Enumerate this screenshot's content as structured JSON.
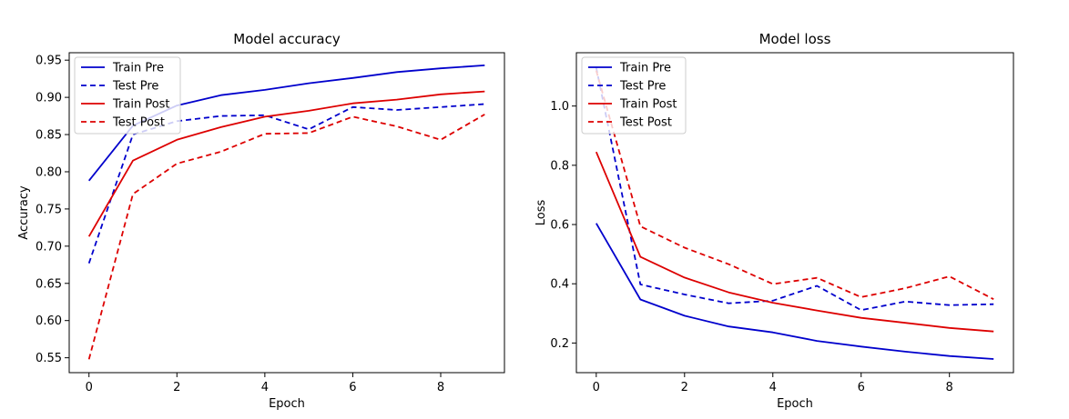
{
  "chart_data": [
    {
      "type": "line",
      "title": "Model accuracy",
      "xlabel": "Epoch",
      "ylabel": "Accuracy",
      "xlim": [
        -0.45,
        9.45
      ],
      "ylim": [
        0.53,
        0.96
      ],
      "xticks": [
        0,
        2,
        4,
        6,
        8
      ],
      "yticks": [
        0.55,
        0.6,
        0.65,
        0.7,
        0.75,
        0.8,
        0.85,
        0.9,
        0.95
      ],
      "ytick_labels": [
        "0.55",
        "0.60",
        "0.65",
        "0.70",
        "0.75",
        "0.80",
        "0.85",
        "0.90",
        "0.95"
      ],
      "legend_position": "top-left",
      "x": [
        0,
        1,
        2,
        3,
        4,
        5,
        6,
        7,
        8,
        9
      ],
      "series": [
        {
          "name": "Train Pre",
          "color": "#0000cc",
          "style": "solid",
          "values": [
            0.788,
            0.862,
            0.889,
            0.903,
            0.91,
            0.919,
            0.926,
            0.934,
            0.939,
            0.943
          ]
        },
        {
          "name": "Test Pre",
          "color": "#0000cc",
          "style": "dashed",
          "values": [
            0.677,
            0.85,
            0.868,
            0.875,
            0.876,
            0.857,
            0.887,
            0.883,
            0.887,
            0.891
          ]
        },
        {
          "name": "Train Post",
          "color": "#dd0000",
          "style": "solid",
          "values": [
            0.713,
            0.815,
            0.843,
            0.86,
            0.874,
            0.882,
            0.892,
            0.897,
            0.904,
            0.908
          ]
        },
        {
          "name": "Test Post",
          "color": "#dd0000",
          "style": "dashed",
          "values": [
            0.548,
            0.77,
            0.811,
            0.827,
            0.851,
            0.852,
            0.874,
            0.861,
            0.843,
            0.877
          ]
        }
      ]
    },
    {
      "type": "line",
      "title": "Model loss",
      "xlabel": "Epoch",
      "ylabel": "Loss",
      "xlim": [
        -0.45,
        9.45
      ],
      "ylim": [
        0.1,
        1.18
      ],
      "xticks": [
        0,
        2,
        4,
        6,
        8
      ],
      "yticks": [
        0.2,
        0.4,
        0.6,
        0.8,
        1.0
      ],
      "ytick_labels": [
        "0.2",
        "0.4",
        "0.6",
        "0.8",
        "1.0"
      ],
      "legend_position": "top-left",
      "x": [
        0,
        1,
        2,
        3,
        4,
        5,
        6,
        7,
        8,
        9
      ],
      "series": [
        {
          "name": "Train Pre",
          "color": "#0000cc",
          "style": "solid",
          "values": [
            0.604,
            0.347,
            0.292,
            0.256,
            0.236,
            0.207,
            0.188,
            0.171,
            0.156,
            0.146
          ]
        },
        {
          "name": "Test Pre",
          "color": "#0000cc",
          "style": "dashed",
          "values": [
            1.13,
            0.398,
            0.364,
            0.334,
            0.343,
            0.393,
            0.311,
            0.34,
            0.328,
            0.331
          ]
        },
        {
          "name": "Train Post",
          "color": "#dd0000",
          "style": "solid",
          "values": [
            0.845,
            0.491,
            0.421,
            0.371,
            0.336,
            0.31,
            0.285,
            0.268,
            0.251,
            0.239
          ]
        },
        {
          "name": "Test Post",
          "color": "#dd0000",
          "style": "dashed",
          "values": [
            1.12,
            0.594,
            0.522,
            0.466,
            0.399,
            0.42,
            0.355,
            0.385,
            0.425,
            0.348
          ]
        }
      ]
    }
  ]
}
